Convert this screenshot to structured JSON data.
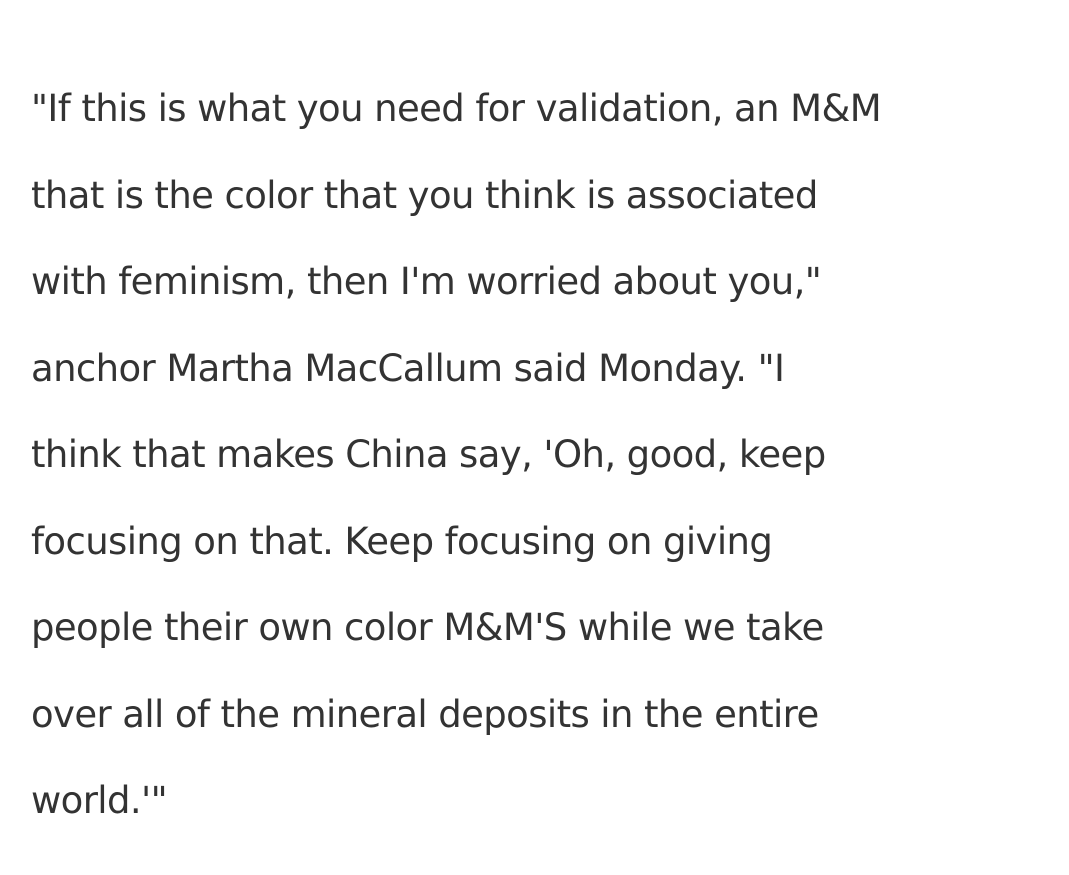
{
  "article": {
    "lines": [
      "\"If this is what you need for validation, an M&M",
      "that is the color that you think is associated",
      "with feminism, then I'm worried about you,\"",
      "anchor Martha MacCallum said Monday. \"I",
      "think that makes China say, 'Oh, good, keep",
      "focusing on that. Keep focusing on giving",
      "people their own color M&M'S while we take",
      "over all of the mineral deposits in the entire",
      "world.'\""
    ]
  }
}
